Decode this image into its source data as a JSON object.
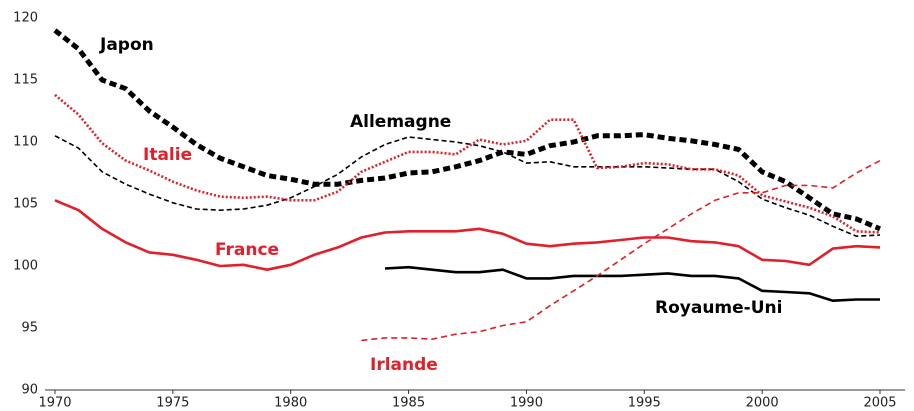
{
  "chart_data": {
    "type": "line",
    "x": [
      1970,
      1971,
      1972,
      1973,
      1974,
      1975,
      1976,
      1977,
      1978,
      1979,
      1980,
      1981,
      1982,
      1983,
      1984,
      1985,
      1986,
      1987,
      1988,
      1989,
      1990,
      1991,
      1992,
      1993,
      1994,
      1995,
      1996,
      1997,
      1998,
      1999,
      2000,
      2001,
      2002,
      2003,
      2004,
      2005
    ],
    "xlim": [
      1970,
      2005
    ],
    "xticks": [
      1970,
      1975,
      1980,
      1985,
      1990,
      1995,
      2000,
      2005
    ],
    "ylim": [
      90,
      120
    ],
    "yticks": [
      90,
      95,
      100,
      105,
      110,
      115,
      120
    ],
    "series": [
      {
        "name": "Japon",
        "color": "#000000",
        "style": "thick-dashed",
        "values": [
          119,
          117.5,
          115,
          114.3,
          112.5,
          111.2,
          109.8,
          108.7,
          108,
          107.3,
          107,
          106.6,
          106.6,
          106.9,
          107.1,
          107.5,
          107.6,
          108,
          108.5,
          109.2,
          109,
          109.7,
          110,
          110.5,
          110.5,
          110.6,
          110.3,
          110.1,
          109.8,
          109.4,
          107.6,
          106.8,
          105.5,
          104.2,
          103.8,
          103
        ]
      },
      {
        "name": "Allemagne",
        "color": "#000000",
        "style": "thin-dashed",
        "values": [
          110.5,
          109.5,
          107.6,
          106.6,
          105.8,
          105.1,
          104.6,
          104.5,
          104.6,
          104.9,
          105.5,
          106.4,
          107.4,
          108.8,
          109.8,
          110.4,
          110.2,
          110,
          109.7,
          109.2,
          108.3,
          108.4,
          108,
          108,
          108,
          108,
          107.9,
          107.8,
          107.8,
          106.8,
          105.4,
          104.7,
          104.1,
          103.2,
          102.4,
          102.5
        ]
      },
      {
        "name": "Italie",
        "color": "#e0202a",
        "style": "dotted",
        "values": [
          113.8,
          112.2,
          109.9,
          108.5,
          107.7,
          106.8,
          106.1,
          105.6,
          105.5,
          105.6,
          105.3,
          105.3,
          106,
          107.6,
          108.4,
          109.2,
          109.2,
          109,
          110.2,
          109.8,
          110.1,
          111.8,
          111.8,
          107.9,
          108,
          108.3,
          108.2,
          107.8,
          107.8,
          107.3,
          105.7,
          105.2,
          104.7,
          104,
          102.8,
          102.7
        ]
      },
      {
        "name": "France",
        "color": "#e0202a",
        "style": "solid",
        "values": [
          105.3,
          104.5,
          103,
          101.9,
          101.1,
          100.9,
          100.5,
          100,
          100.1,
          99.7,
          100.1,
          100.9,
          101.5,
          102.3,
          102.7,
          102.8,
          102.8,
          102.8,
          103,
          102.6,
          101.8,
          101.6,
          101.8,
          101.9,
          102.1,
          102.3,
          102.3,
          102,
          101.9,
          101.6,
          100.5,
          100.4,
          100.1,
          101.4,
          101.6,
          101.5
        ]
      },
      {
        "name": "Royaume-Uni",
        "color": "#000000",
        "style": "solid",
        "values": [
          null,
          null,
          null,
          null,
          null,
          null,
          null,
          null,
          null,
          null,
          null,
          null,
          null,
          null,
          99.8,
          99.9,
          99.7,
          99.5,
          99.5,
          99.7,
          99,
          99,
          99.2,
          99.2,
          99.2,
          99.3,
          99.4,
          99.2,
          99.2,
          99,
          98,
          97.9,
          97.8,
          97.2,
          97.3,
          97.3
        ]
      },
      {
        "name": "Irlande",
        "color": "#e0202a",
        "style": "dashed",
        "values": [
          null,
          null,
          null,
          null,
          null,
          null,
          null,
          null,
          null,
          null,
          null,
          null,
          null,
          94,
          94.2,
          94.2,
          94.1,
          94.5,
          94.7,
          95.2,
          95.5,
          96.8,
          98,
          99.2,
          100.5,
          101.8,
          103,
          104.2,
          105.3,
          105.9,
          105.9,
          106.5,
          106.5,
          106.3,
          107.5,
          108.5
        ]
      }
    ]
  }
}
